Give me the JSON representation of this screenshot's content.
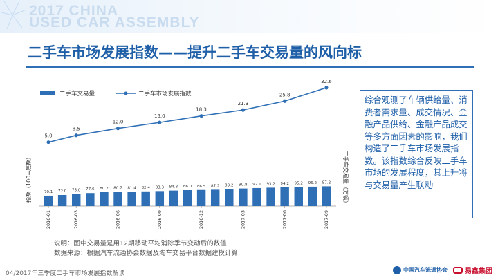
{
  "banner": {
    "line1": "2017 CHINA",
    "line2": "USED CAR ASSEMBLY"
  },
  "page_title": "二手车市场发展指数——提升二手车交易量的风向标",
  "note": "综合观测了车辆供给量、消费者需求量、成交情况、金融产品供给、金融产品成交等多方面因素的影响，我们构造了二手车市场发展指数。该指数综合反映二手车市场的发展程度，其上升将与交易量产生联动",
  "footnotes": {
    "line1": "说明：图中交易量是用12期移动平均消除季节变动后的数值",
    "line2": "数据来源：根据汽车流通协会数据及淘车交易平台数据建模计算"
  },
  "footer": {
    "text": "04/2017年三季度二手车市场发展指数解读",
    "logo1": "中国汽车流通协会",
    "logo2": "易鑫集团"
  },
  "colors": {
    "bar": "#2f6fb6",
    "line": "#2f6fb6",
    "title": "#1f5fa8",
    "label": "#333333"
  },
  "chart_data": {
    "type": "bar+line",
    "x": [
      "2016-01",
      "2016-02",
      "2016-03",
      "2016-04",
      "2016-05",
      "2016-06",
      "2016-07",
      "2016-08",
      "2016-09",
      "2016-10",
      "2016-11",
      "2016-12",
      "2017-01",
      "2017-02",
      "2017-03",
      "2017-04",
      "2017-05",
      "2017-06",
      "2017-07",
      "2017-08",
      "2017-09"
    ],
    "x_tick_labels": [
      "2016-01",
      "2016-03",
      "2016-06",
      "2016-09",
      "2016-12",
      "2017-03",
      "2017-06",
      "2017-09"
    ],
    "bar_series": {
      "name": "二手车交易量",
      "values": [
        70.1,
        72.0,
        75.0,
        77.6,
        80.2,
        80.7,
        81.4,
        82.4,
        83.3,
        84.8,
        86.0,
        86.5,
        87.2,
        89.2,
        90.8,
        92.1,
        93.2,
        94.2,
        95.2,
        96.2,
        97.2
      ]
    },
    "line_series": {
      "name": "二手车市场发展指数",
      "points": [
        {
          "x": "2016-01",
          "y": 5.0
        },
        {
          "x": "2016-03",
          "y": 8.5
        },
        {
          "x": "2016-06",
          "y": 12.0
        },
        {
          "x": "2016-09",
          "y": 15.0
        },
        {
          "x": "2016-12",
          "y": 18.3
        },
        {
          "x": "2017-03",
          "y": 21.3
        },
        {
          "x": "2017-06",
          "y": 25.8
        },
        {
          "x": "2017-09",
          "y": 32.6
        }
      ]
    },
    "left_axis_label": "指数（100=底数）",
    "right_axis_label": "二手车交易量（万辆）",
    "legend_position": "top-left",
    "grid": false
  }
}
